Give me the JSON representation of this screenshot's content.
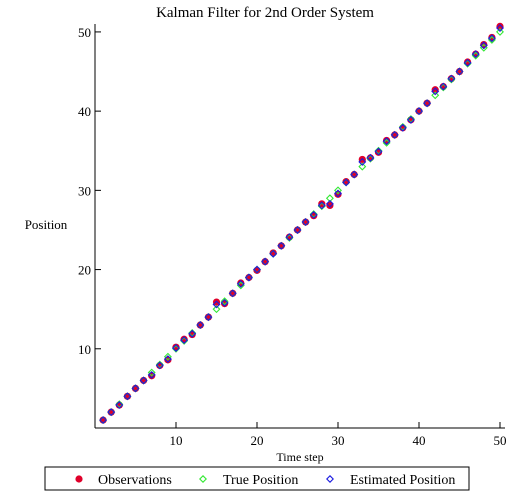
{
  "chart_data": {
    "type": "scatter",
    "title": "Kalman Filter for 2nd Order System",
    "xlabel": "Time step",
    "ylabel": "Position",
    "xlim": [
      0,
      50
    ],
    "ylim": [
      0,
      51
    ],
    "xticks": [
      10,
      20,
      30,
      40,
      50
    ],
    "yticks": [
      10,
      20,
      30,
      40,
      50
    ],
    "grid": false,
    "legend_position": "bottom",
    "series": [
      {
        "name": "Observations",
        "marker": "filled-circle",
        "color": "#e0002a",
        "x": [
          1,
          2,
          3,
          4,
          5,
          6,
          7,
          8,
          9,
          10,
          11,
          12,
          13,
          14,
          15,
          16,
          17,
          18,
          19,
          20,
          21,
          22,
          23,
          24,
          25,
          26,
          27,
          28,
          29,
          30,
          31,
          32,
          33,
          34,
          35,
          36,
          37,
          38,
          39,
          40,
          41,
          42,
          43,
          44,
          45,
          46,
          47,
          48,
          49,
          50
        ],
        "y": [
          1.0,
          2.0,
          2.9,
          4.0,
          5.0,
          6.0,
          6.6,
          7.9,
          8.6,
          10.2,
          11.2,
          11.8,
          13.0,
          14.0,
          15.9,
          15.7,
          17.0,
          18.3,
          19.0,
          19.9,
          21.0,
          22.1,
          23.0,
          24.1,
          25.0,
          26.0,
          26.8,
          28.3,
          28.1,
          29.5,
          31.1,
          32.0,
          33.9,
          34.1,
          34.8,
          36.3,
          37.0,
          37.9,
          38.9,
          40.0,
          41.0,
          42.7,
          43.1,
          44.1,
          45.0,
          46.2,
          47.2,
          48.4,
          49.3,
          50.7
        ]
      },
      {
        "name": "True Position",
        "marker": "open-diamond",
        "color": "#33e833",
        "x": [
          1,
          2,
          3,
          4,
          5,
          6,
          7,
          8,
          9,
          10,
          11,
          12,
          13,
          14,
          15,
          16,
          17,
          18,
          19,
          20,
          21,
          22,
          23,
          24,
          25,
          26,
          27,
          28,
          29,
          30,
          31,
          32,
          33,
          34,
          35,
          36,
          37,
          38,
          39,
          40,
          41,
          42,
          43,
          44,
          45,
          46,
          47,
          48,
          49,
          50
        ],
        "y": [
          1.0,
          2.0,
          3.0,
          4.0,
          5.0,
          6.0,
          7.0,
          8.0,
          9.0,
          10.0,
          11.0,
          12.0,
          13.0,
          14.0,
          15.0,
          16.0,
          17.0,
          18.0,
          19.0,
          20.0,
          21.0,
          22.0,
          23.0,
          24.0,
          25.0,
          26.0,
          27.0,
          28.0,
          29.0,
          30.0,
          31.0,
          32.0,
          33.0,
          34.0,
          35.0,
          36.0,
          37.0,
          38.0,
          39.0,
          40.0,
          41.0,
          42.0,
          43.0,
          44.0,
          45.0,
          46.0,
          47.0,
          48.0,
          49.0,
          50.0
        ]
      },
      {
        "name": "Estimated Position",
        "marker": "open-diamond",
        "color": "#1a1ae0",
        "x": [
          1,
          2,
          3,
          4,
          5,
          6,
          7,
          8,
          9,
          10,
          11,
          12,
          13,
          14,
          15,
          16,
          17,
          18,
          19,
          20,
          21,
          22,
          23,
          24,
          25,
          26,
          27,
          28,
          29,
          30,
          31,
          32,
          33,
          34,
          35,
          36,
          37,
          38,
          39,
          40,
          41,
          42,
          43,
          44,
          45,
          46,
          47,
          48,
          49,
          50
        ],
        "y": [
          1.0,
          2.0,
          2.9,
          4.0,
          5.0,
          6.0,
          6.7,
          7.9,
          8.7,
          10.1,
          11.1,
          11.9,
          13.0,
          14.0,
          15.6,
          15.8,
          17.0,
          18.2,
          19.0,
          20.0,
          21.0,
          22.0,
          23.0,
          24.1,
          25.0,
          26.0,
          26.9,
          28.1,
          28.3,
          29.6,
          31.0,
          32.0,
          33.6,
          34.1,
          34.9,
          36.2,
          37.0,
          37.9,
          38.9,
          40.0,
          41.0,
          42.5,
          43.1,
          44.1,
          45.0,
          46.1,
          47.2,
          48.3,
          49.2,
          50.5
        ]
      }
    ]
  }
}
